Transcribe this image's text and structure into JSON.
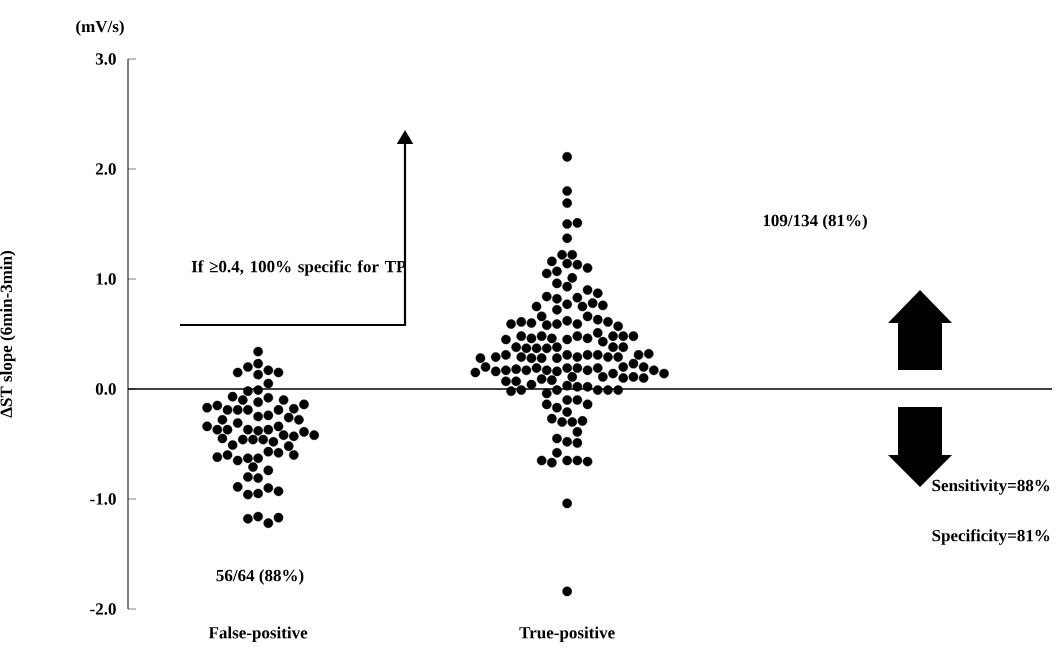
{
  "chart_data": {
    "type": "scatter",
    "ylabel": "ΔST slope (6min-3min)",
    "annotations": [
      "(mV/s)",
      "If ≥0.4, 100% specific for TP",
      "109/134 (81%)",
      "56/64 (88%)",
      "Sensitivity=88%",
      "Specificity=81%"
    ],
    "categories": [
      "False-positive",
      "True-positive"
    ],
    "ylim": [
      -2,
      3
    ],
    "yticks": [
      {
        "value": -2,
        "label": "-2.0"
      },
      {
        "value": -1,
        "label": "-1.0"
      },
      {
        "value": 0,
        "label": "0.0"
      },
      {
        "value": 1,
        "label": "1.0"
      },
      {
        "value": 2,
        "label": "2.0"
      },
      {
        "value": 3,
        "label": "3.0"
      }
    ],
    "ref_lines": [
      {
        "axis": "y",
        "value": 0,
        "color": "#000000"
      }
    ],
    "marker": "circle",
    "series": [
      {
        "color": "#000000",
        "x": [
          "False-positive",
          "False-positive",
          "False-positive",
          "False-positive",
          "False-positive",
          "False-positive",
          "False-positive",
          "False-positive",
          "False-positive",
          "False-positive",
          "False-positive",
          "False-positive",
          "False-positive",
          "False-positive",
          "False-positive",
          "False-positive",
          "False-positive",
          "False-positive",
          "False-positive",
          "False-positive",
          "False-positive",
          "False-positive",
          "False-positive",
          "False-positive",
          "False-positive",
          "False-positive",
          "False-positive",
          "False-positive",
          "False-positive",
          "False-positive",
          "False-positive",
          "False-positive",
          "False-positive",
          "False-positive",
          "False-positive",
          "False-positive",
          "False-positive",
          "False-positive",
          "False-positive",
          "False-positive",
          "False-positive",
          "False-positive",
          "False-positive",
          "False-positive",
          "False-positive",
          "False-positive",
          "False-positive",
          "False-positive",
          "False-positive",
          "False-positive",
          "False-positive",
          "False-positive",
          "False-positive",
          "False-positive",
          "False-positive",
          "False-positive",
          "False-positive",
          "False-positive",
          "False-positive",
          "False-positive",
          "False-positive",
          "False-positive",
          "False-positive",
          "False-positive",
          "False-positive",
          "False-positive",
          "False-positive",
          "False-positive"
        ],
        "values": [
          -0.25,
          -0.38,
          -0.46,
          -0.24,
          -0.37,
          -0.46,
          -0.12,
          -0.19,
          -0.37,
          -0.48,
          -0.08,
          -0.19,
          -0.34,
          -0.46,
          -0.63,
          0.23,
          0.17,
          -0.01,
          -0.1,
          -0.19,
          -0.26,
          -0.42,
          -0.57,
          -0.63,
          -0.81,
          -0.95,
          -1.16,
          0.34,
          0.2,
          0.13,
          0.05,
          -0.02,
          -0.1,
          -0.19,
          -0.31,
          -0.37,
          -0.43,
          -0.51,
          -0.58,
          -0.65,
          -0.74,
          -0.9,
          -0.96,
          -1.22,
          0.15,
          -0.07,
          -0.18,
          -0.28,
          -0.37,
          -0.45,
          -0.52,
          -0.6,
          -0.71,
          -0.8,
          -0.93,
          -1.18,
          0.15,
          -0.15,
          -0.28,
          -0.39,
          -0.6,
          -0.89,
          -1.17,
          -0.14,
          -0.34,
          -0.62,
          -0.17,
          -0.42
        ]
      },
      {
        "color": "#000000",
        "x": [
          "True-positive",
          "True-positive",
          "True-positive",
          "True-positive",
          "True-positive",
          "True-positive",
          "True-positive",
          "True-positive",
          "True-positive",
          "True-positive",
          "True-positive",
          "True-positive",
          "True-positive",
          "True-positive",
          "True-positive",
          "True-positive",
          "True-positive",
          "True-positive",
          "True-positive",
          "True-positive",
          "True-positive",
          "True-positive",
          "True-positive",
          "True-positive",
          "True-positive",
          "True-positive",
          "True-positive",
          "True-positive",
          "True-positive",
          "True-positive",
          "True-positive",
          "True-positive",
          "True-positive",
          "True-positive",
          "True-positive",
          "True-positive",
          "True-positive",
          "True-positive",
          "True-positive",
          "True-positive",
          "True-positive",
          "True-positive",
          "True-positive",
          "True-positive",
          "True-positive",
          "True-positive",
          "True-positive",
          "True-positive",
          "True-positive",
          "True-positive",
          "True-positive",
          "True-positive",
          "True-positive",
          "True-positive",
          "True-positive",
          "True-positive",
          "True-positive",
          "True-positive",
          "True-positive",
          "True-positive",
          "True-positive",
          "True-positive",
          "True-positive",
          "True-positive",
          "True-positive",
          "True-positive",
          "True-positive",
          "True-positive",
          "True-positive",
          "True-positive",
          "True-positive",
          "True-positive",
          "True-positive",
          "True-positive",
          "True-positive",
          "True-positive",
          "True-positive",
          "True-positive",
          "True-positive",
          "True-positive",
          "True-positive",
          "True-positive",
          "True-positive",
          "True-positive",
          "True-positive",
          "True-positive",
          "True-positive",
          "True-positive",
          "True-positive",
          "True-positive",
          "True-positive",
          "True-positive",
          "True-positive",
          "True-positive",
          "True-positive",
          "True-positive",
          "True-positive",
          "True-positive",
          "True-positive",
          "True-positive",
          "True-positive",
          "True-positive",
          "True-positive",
          "True-positive",
          "True-positive",
          "True-positive",
          "True-positive",
          "True-positive",
          "True-positive",
          "True-positive",
          "True-positive",
          "True-positive",
          "True-positive",
          "True-positive",
          "True-positive",
          "True-positive",
          "True-positive",
          "True-positive",
          "True-positive",
          "True-positive",
          "True-positive",
          "True-positive",
          "True-positive",
          "True-positive",
          "True-positive",
          "True-positive",
          "True-positive",
          "True-positive",
          "True-positive",
          "True-positive",
          "True-positive",
          "True-positive",
          "True-positive",
          "True-positive",
          "True-positive",
          "True-positive"
        ],
        "values": [
          0.19,
          0.31,
          0.19,
          0.16,
          0.45,
          0.29,
          0.17,
          0.03,
          0.48,
          0.38,
          0.17,
          0.02,
          0.62,
          0.46,
          0.31,
          0.19,
          0.11,
          -0.01,
          0.77,
          0.59,
          0.46,
          0.37,
          0.28,
          0.19,
          0.11,
          0.02,
          0.83,
          0.59,
          0.48,
          0.31,
          0.17,
          0.09,
          -0.04,
          -0.65,
          1.14,
          0.93,
          0.82,
          0.66,
          0.58,
          0.51,
          0.43,
          0.37,
          0.28,
          0.14,
          0.04,
          -0.01,
          -0.1,
          -0.21,
          -0.3,
          -0.48,
          -0.65,
          2.11,
          1.8,
          1.69,
          1.5,
          1.37,
          1.22,
          1.13,
          1.07,
          1.01,
          0.96,
          0.9,
          0.75,
          0.63,
          0.46,
          0.37,
          0.28,
          0.18,
          0.1,
          -0.01,
          -0.1,
          -0.17,
          -0.3,
          -0.39,
          -0.49,
          -0.58,
          -0.67,
          -1.04,
          -1.84,
          1.51,
          1.22,
          1.16,
          1.1,
          1.05,
          0.84,
          0.78,
          0.72,
          0.66,
          0.6,
          0.48,
          0.38,
          0.29,
          0.17,
          0.08,
          -0.01,
          -0.14,
          -0.29,
          -0.45,
          -0.66,
          0.87,
          0.75,
          0.61,
          0.48,
          0.38,
          0.29,
          0.2,
          0.11,
          -0.01,
          -0.14,
          -0.27,
          -0.65,
          0.76,
          0.57,
          0.38,
          0.31,
          0.23,
          0.16,
          0.07,
          -0.02,
          0.61,
          0.45,
          0.29,
          0.2,
          0.1,
          0.59,
          0.48,
          0.29,
          0.2,
          0.07,
          0.48,
          0.31,
          0.17,
          0.32,
          0.15,
          0.28,
          0.14
        ]
      }
    ]
  }
}
